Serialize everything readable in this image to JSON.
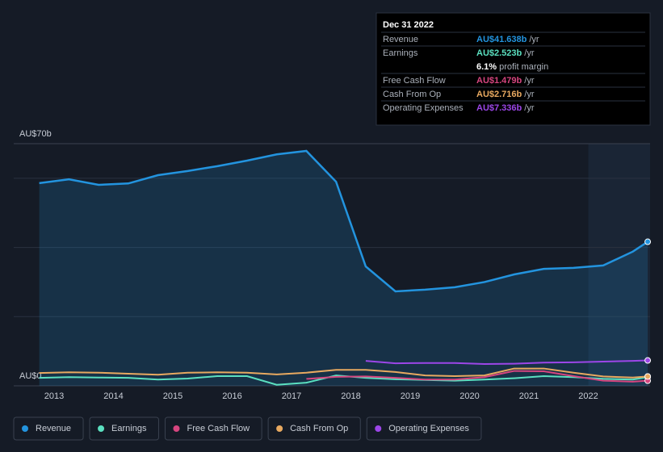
{
  "chart_data": {
    "type": "line",
    "x": [
      2012.75,
      2013.25,
      2013.75,
      2014.25,
      2014.75,
      2015.25,
      2015.75,
      2016.25,
      2016.75,
      2017.25,
      2017.75,
      2018.25,
      2018.75,
      2019.25,
      2019.75,
      2020.25,
      2020.75,
      2021.25,
      2021.75,
      2022.25,
      2022.75,
      2023.0
    ],
    "xlim": [
      2012.32,
      2023.04
    ],
    "xticks": [
      2013,
      2014,
      2015,
      2016,
      2017,
      2018,
      2019,
      2020,
      2021,
      2022
    ],
    "ylim": [
      0,
      70
    ],
    "yticks": [
      {
        "value": 0,
        "label": "AU$0"
      },
      {
        "value": 70,
        "label": "AU$70b"
      }
    ],
    "gridlines": [
      20,
      40,
      60
    ],
    "highlight_from": 2022,
    "series": [
      {
        "name": "Revenue",
        "color": "#2394df",
        "area": true,
        "values": [
          58.6,
          59.7,
          58.1,
          58.5,
          60.9,
          62.1,
          63.5,
          65.1,
          66.9,
          67.9,
          59,
          34.5,
          27.3,
          27.8,
          28.5,
          30,
          32.2,
          33.8,
          34.1,
          34.8,
          38.8,
          41.638
        ]
      },
      {
        "name": "Earnings",
        "color": "#5be0c0",
        "values": [
          2.3,
          2.5,
          2.4,
          2.3,
          1.8,
          2.1,
          2.8,
          2.8,
          0.3,
          0.9,
          3,
          2.3,
          1.9,
          1.7,
          1.5,
          1.8,
          2.2,
          2.8,
          2.5,
          2,
          1.8,
          2.523
        ]
      },
      {
        "name": "Free Cash Flow",
        "color": "#d6457f",
        "values": [
          null,
          null,
          null,
          null,
          null,
          null,
          null,
          null,
          null,
          2,
          2.6,
          2.7,
          2.3,
          1.8,
          1.8,
          2.5,
          4.3,
          4.2,
          2.8,
          1.5,
          1.2,
          1.479
        ]
      },
      {
        "name": "Cash From Op",
        "color": "#e8a960",
        "values": [
          3.7,
          3.9,
          3.8,
          3.5,
          3.2,
          3.8,
          3.9,
          3.8,
          3.3,
          3.8,
          4.6,
          4.6,
          4,
          3,
          2.8,
          3,
          5,
          5,
          3.8,
          2.7,
          2.4,
          2.716
        ]
      },
      {
        "name": "Operating Expenses",
        "color": "#9c46e8",
        "values": [
          null,
          null,
          null,
          null,
          null,
          null,
          null,
          null,
          null,
          null,
          null,
          7.2,
          6.5,
          6.6,
          6.6,
          6.3,
          6.4,
          6.7,
          6.8,
          7,
          7.2,
          7.336
        ]
      }
    ]
  },
  "tooltip": {
    "date": "Dec 31 2022",
    "rows": [
      {
        "label": "Revenue",
        "value": "AU$41.638b",
        "unit": "/yr",
        "color": "#2394df"
      },
      {
        "label": "Earnings",
        "value": "AU$2.523b",
        "unit": "/yr",
        "color": "#5be0c0",
        "extra_value": "6.1%",
        "extra_text": "profit margin"
      },
      {
        "label": "Free Cash Flow",
        "value": "AU$1.479b",
        "unit": "/yr",
        "color": "#d6457f"
      },
      {
        "label": "Cash From Op",
        "value": "AU$2.716b",
        "unit": "/yr",
        "color": "#e8a960"
      },
      {
        "label": "Operating Expenses",
        "value": "AU$7.336b",
        "unit": "/yr",
        "color": "#9c46e8"
      }
    ]
  }
}
